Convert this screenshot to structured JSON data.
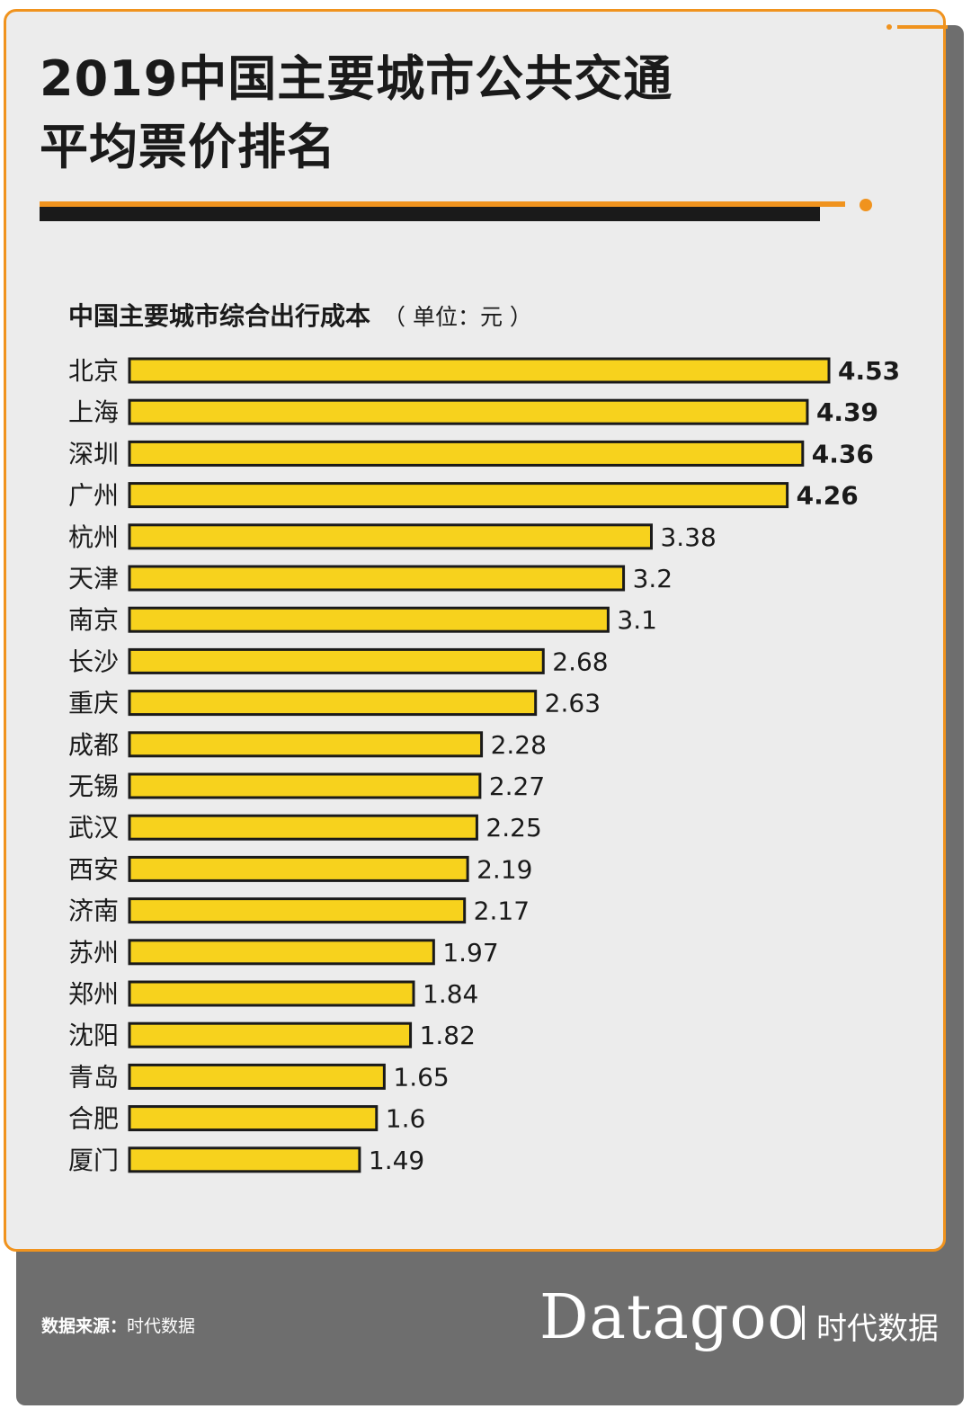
{
  "title_line1": "2019中国主要城市公共交通",
  "title_line2": "平均票价排名",
  "subtitle": "中国主要城市综合出行成本",
  "unit": "（ 单位：元 ）",
  "source_label": "数据来源：",
  "source_value": "时代数据",
  "brand": "Datagoo",
  "brand_cn": "时代数据",
  "colors": {
    "accent": "#f0931e",
    "bar": "#f7d21d",
    "bar_border": "#1a1a1a",
    "card_bg": "#ececec",
    "footer_bg": "#6e6e6e"
  },
  "chart_data": {
    "type": "bar",
    "orientation": "horizontal",
    "title": "中国主要城市综合出行成本",
    "unit": "元",
    "categories": [
      "北京",
      "上海",
      "深圳",
      "广州",
      "杭州",
      "天津",
      "南京",
      "长沙",
      "重庆",
      "成都",
      "无锡",
      "武汉",
      "西安",
      "济南",
      "苏州",
      "郑州",
      "沈阳",
      "青岛",
      "合肥",
      "厦门"
    ],
    "values": [
      4.53,
      4.39,
      4.36,
      4.26,
      3.38,
      3.2,
      3.1,
      2.68,
      2.63,
      2.28,
      2.27,
      2.25,
      2.19,
      2.17,
      1.97,
      1.84,
      1.82,
      1.65,
      1.6,
      1.49
    ],
    "value_labels": [
      "4.53",
      "4.39",
      "4.36",
      "4.26",
      "3.38",
      "3.2",
      "3.1",
      "2.68",
      "2.63",
      "2.28",
      "2.27",
      "2.25",
      "2.19",
      "2.17",
      "1.97",
      "1.84",
      "1.82",
      "1.65",
      "1.6",
      "1.49"
    ],
    "bold_top_n": 4,
    "xlim": [
      0,
      4.53
    ],
    "grid": false,
    "legend": "none"
  }
}
